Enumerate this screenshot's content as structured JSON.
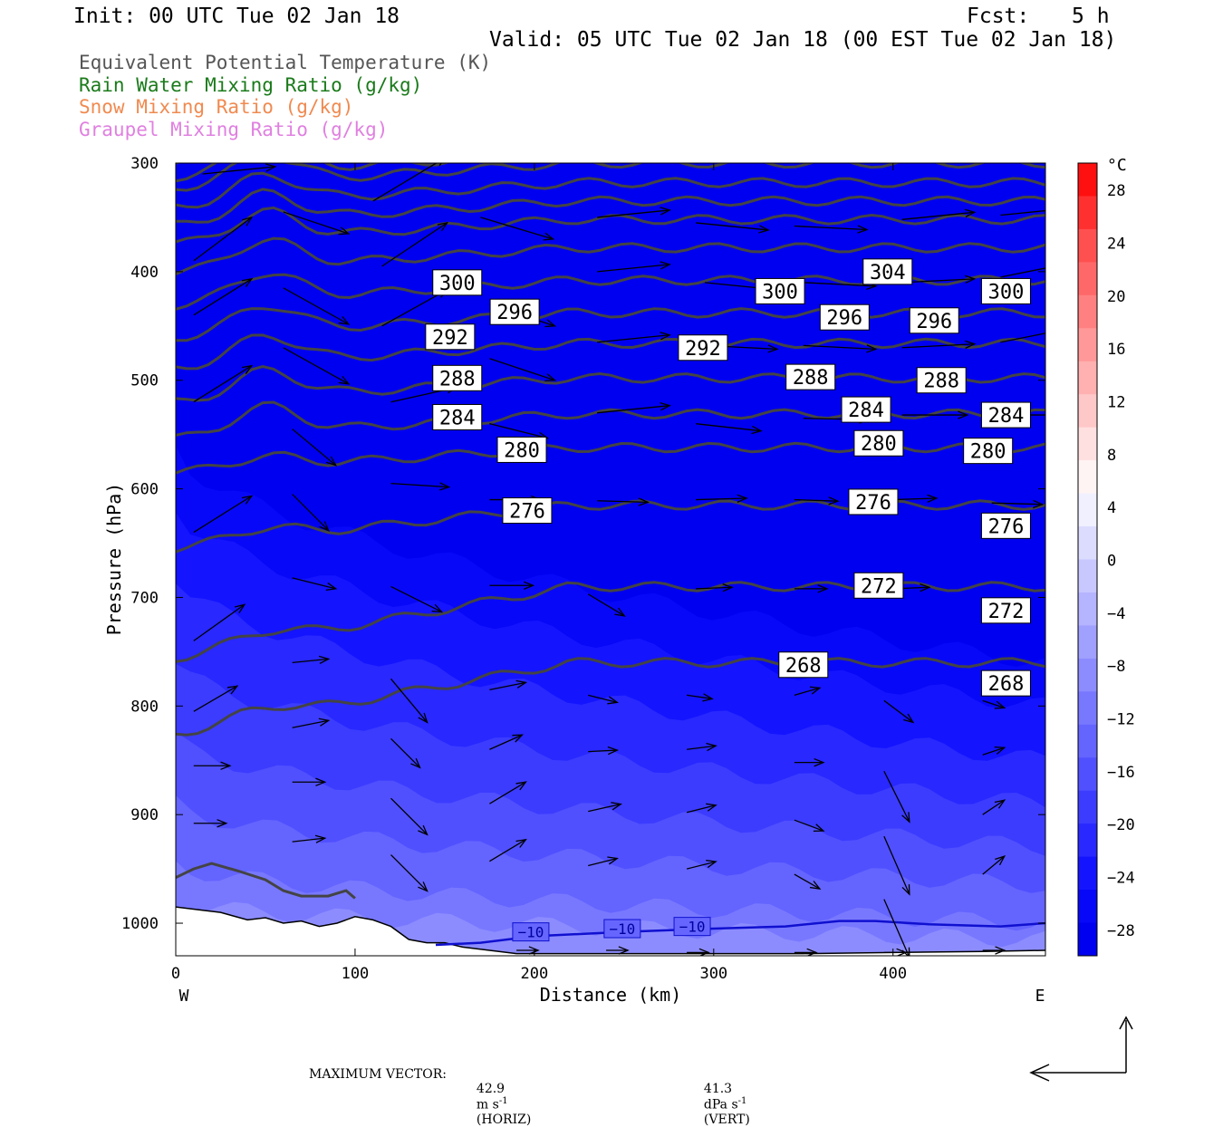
{
  "header": {
    "init": "Init: 00 UTC Tue 02 Jan 18",
    "fcst_label": "Fcst:",
    "fcst_value": "5 h",
    "valid": "Valid: 05 UTC Tue 02 Jan 18 (00 EST Tue 02 Jan 18)"
  },
  "legend": [
    {
      "label": "Equivalent Potential Temperature (K)",
      "color": "#555555"
    },
    {
      "label": "Rain Water Mixing Ratio (g/kg)",
      "color": "#1a7a1a"
    },
    {
      "label": "Snow Mixing Ratio (g/kg)",
      "color": "#f08a50"
    },
    {
      "label": "Graupel Mixing Ratio (g/kg)",
      "color": "#e080e0"
    }
  ],
  "footer": {
    "max_vector_label": "MAXIMUM VECTOR:",
    "horiz_value": "42.9",
    "horiz_unit": "m s",
    "horiz_exp": "-1",
    "horiz_tag": "(HORIZ)",
    "vert_value": "41.3",
    "vert_unit": "dPa s",
    "vert_exp": "-1",
    "vert_tag": "(VERT)"
  },
  "chart_data": {
    "type": "heatmap",
    "xlabel": "Distance (km)",
    "ylabel": "Pressure (hPa)",
    "xlim": [
      0,
      485
    ],
    "ylim": [
      1030,
      300
    ],
    "x_ticks": [
      0,
      100,
      200,
      300,
      400
    ],
    "y_ticks": [
      300,
      400,
      500,
      600,
      700,
      800,
      900,
      1000
    ],
    "x_end_labels": {
      "left": "W",
      "right": "E"
    },
    "colorbar": {
      "unit": "°C",
      "tick_labels": [
        "28",
        "24",
        "20",
        "16",
        "12",
        "8",
        "4",
        "0",
        "−4",
        "−8",
        "−12",
        "−16",
        "−20",
        "−24",
        "−28"
      ],
      "tick_values": [
        28,
        24,
        20,
        16,
        12,
        8,
        4,
        0,
        -4,
        -8,
        -12,
        -16,
        -20,
        -24,
        -28
      ],
      "range": [
        -32,
        32
      ],
      "colors_warm": [
        "#ff1010",
        "#ff3030",
        "#ff5050",
        "#ff6868",
        "#ff8080",
        "#ff9898",
        "#ffb0b0",
        "#ffc8c8",
        "#ffe0e0",
        "#fff4f4"
      ],
      "colors_cold": [
        "#f0f0ff",
        "#dcdcff",
        "#c8c8ff",
        "#b4b4ff",
        "#a0a0ff",
        "#8c8cff",
        "#7878ff",
        "#6464ff",
        "#5050ff",
        "#3c3cff",
        "#2828ff",
        "#1414ff",
        "#0808f8",
        "#0000f0"
      ]
    },
    "theta_e_contours": [
      {
        "value": 268,
        "label": "268",
        "label_positions": [
          [
            350,
            762
          ],
          [
            463,
            779
          ]
        ]
      },
      {
        "value": 272,
        "label": "272",
        "label_positions": [
          [
            392,
            689
          ],
          [
            463,
            712
          ]
        ]
      },
      {
        "value": 276,
        "label": "276",
        "label_positions": [
          [
            196,
            620
          ],
          [
            389,
            612
          ],
          [
            463,
            634
          ]
        ]
      },
      {
        "value": 280,
        "label": "280",
        "label_positions": [
          [
            193,
            564
          ],
          [
            392,
            558
          ],
          [
            453,
            565
          ]
        ]
      },
      {
        "value": 284,
        "label": "284",
        "label_positions": [
          [
            157,
            534
          ],
          [
            385,
            527
          ],
          [
            463,
            532
          ]
        ]
      },
      {
        "value": 288,
        "label": "288",
        "label_positions": [
          [
            157,
            498
          ],
          [
            354,
            497
          ],
          [
            427,
            500
          ]
        ]
      },
      {
        "value": 292,
        "label": "292",
        "label_positions": [
          [
            153,
            460
          ],
          [
            294,
            470
          ],
          [
            999,
            999
          ]
        ]
      },
      {
        "value": 296,
        "label": "296",
        "label_positions": [
          [
            189,
            437
          ],
          [
            373,
            442
          ],
          [
            423,
            445
          ]
        ]
      },
      {
        "value": 300,
        "label": "300",
        "label_positions": [
          [
            157,
            410
          ],
          [
            337,
            418
          ],
          [
            463,
            418
          ]
        ]
      },
      {
        "value": 304,
        "label": "304",
        "label_positions": [
          [
            397,
            400
          ]
        ]
      }
    ],
    "isotherm": {
      "value": -10,
      "label": "−10",
      "label_positions": [
        [
          198,
          1008
        ],
        [
          249,
          1005
        ],
        [
          288,
          1003
        ]
      ]
    },
    "vectors": [
      {
        "x": 15,
        "p": 310,
        "u": 1.0,
        "v": -0.1
      },
      {
        "x": 60,
        "p": 345,
        "u": 0.9,
        "v": 0.3
      },
      {
        "x": 110,
        "p": 335,
        "u": 1.0,
        "v": -0.6
      },
      {
        "x": 170,
        "p": 350,
        "u": 1.0,
        "v": 0.3
      },
      {
        "x": 235,
        "p": 350,
        "u": 1.0,
        "v": -0.1
      },
      {
        "x": 290,
        "p": 355,
        "u": 1.0,
        "v": 0.1
      },
      {
        "x": 345,
        "p": 358,
        "u": 1.0,
        "v": 0.05
      },
      {
        "x": 405,
        "p": 352,
        "u": 1.0,
        "v": -0.1
      },
      {
        "x": 460,
        "p": 348,
        "u": 1.0,
        "v": -0.1
      },
      {
        "x": 10,
        "p": 390,
        "u": 0.8,
        "v": -0.6
      },
      {
        "x": 60,
        "p": 415,
        "u": 0.9,
        "v": 0.5
      },
      {
        "x": 115,
        "p": 395,
        "u": 0.9,
        "v": -0.6
      },
      {
        "x": 175,
        "p": 430,
        "u": 0.9,
        "v": 0.3
      },
      {
        "x": 235,
        "p": 400,
        "u": 1.0,
        "v": -0.1
      },
      {
        "x": 295,
        "p": 410,
        "u": 1.0,
        "v": 0.1
      },
      {
        "x": 350,
        "p": 410,
        "u": 1.0,
        "v": 0.05
      },
      {
        "x": 405,
        "p": 410,
        "u": 1.0,
        "v": -0.05
      },
      {
        "x": 460,
        "p": 405,
        "u": 1.0,
        "v": -0.2
      },
      {
        "x": 10,
        "p": 440,
        "u": 0.8,
        "v": -0.5
      },
      {
        "x": 60,
        "p": 470,
        "u": 0.9,
        "v": 0.5
      },
      {
        "x": 115,
        "p": 450,
        "u": 0.9,
        "v": -0.5
      },
      {
        "x": 175,
        "p": 480,
        "u": 0.9,
        "v": 0.3
      },
      {
        "x": 235,
        "p": 465,
        "u": 1.0,
        "v": -0.1
      },
      {
        "x": 295,
        "p": 468,
        "u": 1.0,
        "v": 0.05
      },
      {
        "x": 350,
        "p": 468,
        "u": 1.0,
        "v": 0.05
      },
      {
        "x": 405,
        "p": 470,
        "u": 1.0,
        "v": -0.05
      },
      {
        "x": 460,
        "p": 465,
        "u": 1.0,
        "v": -0.2
      },
      {
        "x": 10,
        "p": 520,
        "u": 0.8,
        "v": -0.5
      },
      {
        "x": 65,
        "p": 545,
        "u": 0.6,
        "v": 0.5
      },
      {
        "x": 120,
        "p": 520,
        "u": 0.9,
        "v": -0.2
      },
      {
        "x": 175,
        "p": 540,
        "u": 0.8,
        "v": 0.2
      },
      {
        "x": 235,
        "p": 530,
        "u": 1.0,
        "v": -0.1
      },
      {
        "x": 290,
        "p": 540,
        "u": 0.9,
        "v": 0.1
      },
      {
        "x": 350,
        "p": 535,
        "u": 0.9,
        "v": 0.02
      },
      {
        "x": 405,
        "p": 532,
        "u": 0.9,
        "v": 0.0
      },
      {
        "x": 460,
        "p": 532,
        "u": 1.0,
        "v": 0.0
      },
      {
        "x": 10,
        "p": 640,
        "u": 0.8,
        "v": -0.5
      },
      {
        "x": 65,
        "p": 605,
        "u": 0.5,
        "v": 0.5
      },
      {
        "x": 120,
        "p": 595,
        "u": 0.8,
        "v": 0.05
      },
      {
        "x": 175,
        "p": 610,
        "u": 0.7,
        "v": 0.0
      },
      {
        "x": 235,
        "p": 611,
        "u": 0.7,
        "v": 0.02
      },
      {
        "x": 290,
        "p": 610,
        "u": 0.7,
        "v": -0.02
      },
      {
        "x": 345,
        "p": 610,
        "u": 0.6,
        "v": 0.02
      },
      {
        "x": 400,
        "p": 610,
        "u": 0.6,
        "v": -0.02
      },
      {
        "x": 455,
        "p": 613,
        "u": 0.7,
        "v": 0.02
      },
      {
        "x": 10,
        "p": 740,
        "u": 0.7,
        "v": -0.5
      },
      {
        "x": 65,
        "p": 682,
        "u": 0.6,
        "v": 0.15
      },
      {
        "x": 120,
        "p": 690,
        "u": 0.7,
        "v": 0.35
      },
      {
        "x": 175,
        "p": 689,
        "u": 0.6,
        "v": 0.0
      },
      {
        "x": 230,
        "p": 697,
        "u": 0.5,
        "v": 0.3
      },
      {
        "x": 290,
        "p": 692,
        "u": 0.5,
        "v": -0.02
      },
      {
        "x": 345,
        "p": 692,
        "u": 0.45,
        "v": 0.0
      },
      {
        "x": 400,
        "p": 692,
        "u": 0.5,
        "v": -0.02
      },
      {
        "x": 455,
        "p": 705,
        "u": 0.5,
        "v": 0.2
      },
      {
        "x": 10,
        "p": 805,
        "u": 0.6,
        "v": -0.35
      },
      {
        "x": 65,
        "p": 760,
        "u": 0.5,
        "v": -0.05
      },
      {
        "x": 120,
        "p": 775,
        "u": 0.5,
        "v": 0.6
      },
      {
        "x": 175,
        "p": 785,
        "u": 0.5,
        "v": -0.1
      },
      {
        "x": 230,
        "p": 790,
        "u": 0.4,
        "v": 0.1
      },
      {
        "x": 285,
        "p": 790,
        "u": 0.35,
        "v": 0.05
      },
      {
        "x": 345,
        "p": 790,
        "u": 0.35,
        "v": -0.1
      },
      {
        "x": 395,
        "p": 795,
        "u": 0.4,
        "v": 0.3
      },
      {
        "x": 450,
        "p": 795,
        "u": 0.3,
        "v": 0.1
      },
      {
        "x": 10,
        "p": 855,
        "u": 0.5,
        "v": 0.0
      },
      {
        "x": 65,
        "p": 820,
        "u": 0.5,
        "v": -0.1
      },
      {
        "x": 120,
        "p": 830,
        "u": 0.4,
        "v": 0.4
      },
      {
        "x": 175,
        "p": 840,
        "u": 0.45,
        "v": -0.2
      },
      {
        "x": 230,
        "p": 842,
        "u": 0.4,
        "v": -0.02
      },
      {
        "x": 285,
        "p": 840,
        "u": 0.4,
        "v": -0.05
      },
      {
        "x": 345,
        "p": 852,
        "u": 0.4,
        "v": 0.0
      },
      {
        "x": 395,
        "p": 860,
        "u": 0.35,
        "v": 0.7
      },
      {
        "x": 450,
        "p": 845,
        "u": 0.3,
        "v": -0.1
      },
      {
        "x": 10,
        "p": 908,
        "u": 0.45,
        "v": 0.0
      },
      {
        "x": 65,
        "p": 870,
        "u": 0.45,
        "v": 0.0
      },
      {
        "x": 120,
        "p": 885,
        "u": 0.5,
        "v": 0.5
      },
      {
        "x": 175,
        "p": 890,
        "u": 0.5,
        "v": -0.3
      },
      {
        "x": 230,
        "p": 897,
        "u": 0.45,
        "v": -0.1
      },
      {
        "x": 285,
        "p": 898,
        "u": 0.4,
        "v": -0.1
      },
      {
        "x": 345,
        "p": 905,
        "u": 0.4,
        "v": 0.15
      },
      {
        "x": 395,
        "p": 920,
        "u": 0.35,
        "v": 0.8
      },
      {
        "x": 450,
        "p": 900,
        "u": 0.3,
        "v": -0.2
      },
      {
        "x": 65,
        "p": 925,
        "u": 0.45,
        "v": -0.05
      },
      {
        "x": 120,
        "p": 937,
        "u": 0.5,
        "v": 0.5
      },
      {
        "x": 175,
        "p": 943,
        "u": 0.5,
        "v": -0.3
      },
      {
        "x": 230,
        "p": 947,
        "u": 0.4,
        "v": -0.1
      },
      {
        "x": 285,
        "p": 950,
        "u": 0.4,
        "v": -0.1
      },
      {
        "x": 345,
        "p": 955,
        "u": 0.35,
        "v": 0.2
      },
      {
        "x": 395,
        "p": 978,
        "u": 0.35,
        "v": 0.8
      },
      {
        "x": 450,
        "p": 955,
        "u": 0.3,
        "v": -0.25
      },
      {
        "x": 190,
        "p": 1025,
        "u": 0.3,
        "v": 0.0
      },
      {
        "x": 240,
        "p": 1025,
        "u": 0.3,
        "v": 0.0
      },
      {
        "x": 285,
        "p": 1027,
        "u": 0.3,
        "v": 0.0
      },
      {
        "x": 345,
        "p": 1027,
        "u": 0.3,
        "v": 0.0
      },
      {
        "x": 395,
        "p": 1027,
        "u": 0.3,
        "v": 0.0
      },
      {
        "x": 450,
        "p": 1025,
        "u": 0.3,
        "v": 0.0
      }
    ]
  }
}
